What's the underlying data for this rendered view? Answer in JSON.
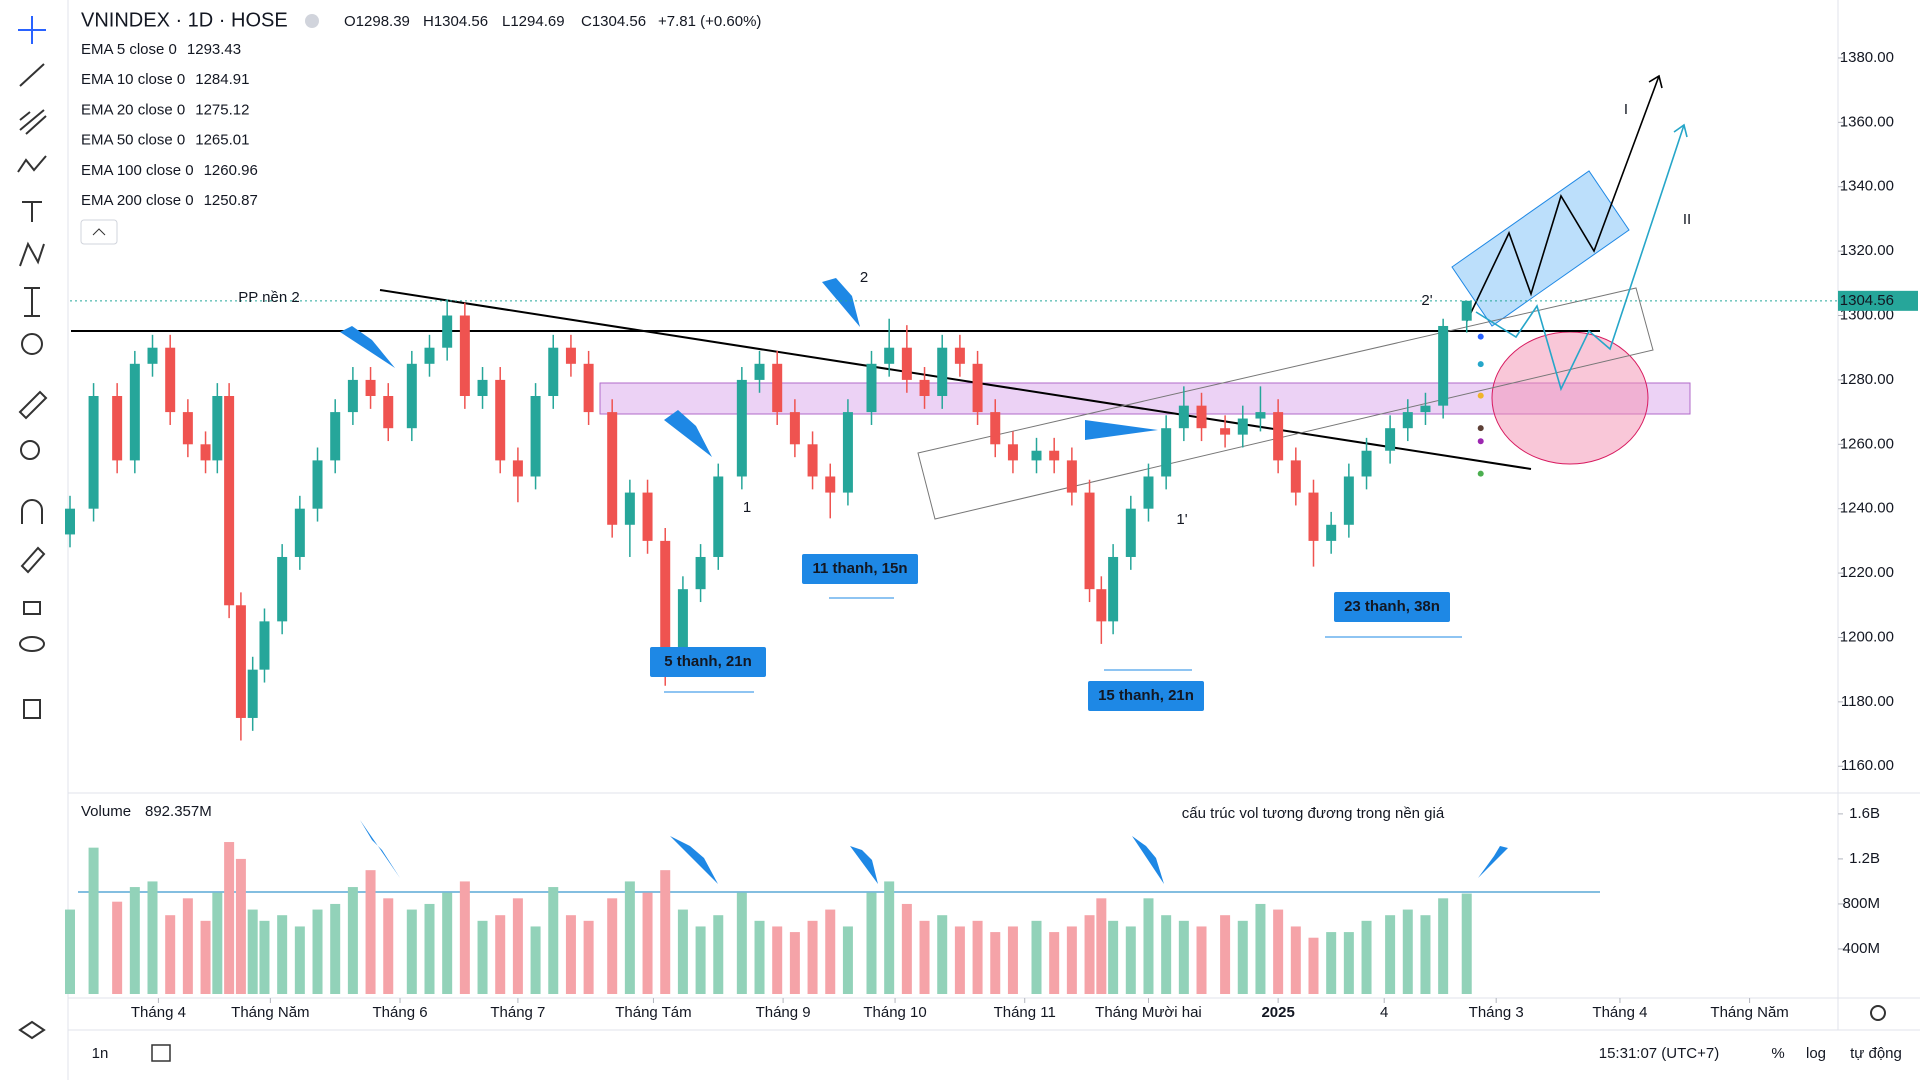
{
  "header": {
    "symbol": "VNINDEX · 1D · HOSE",
    "open": "O1298.39",
    "high": "H1304.56",
    "low": "L1294.69",
    "close": "C1304.56",
    "change": "+7.81 (+0.60%)"
  },
  "chart_data": {
    "type": "candlestick",
    "x": [
      0,
      4,
      8,
      11,
      14,
      17,
      20,
      23,
      25,
      27,
      29,
      31,
      33,
      36,
      39,
      42,
      45,
      48,
      51,
      54,
      58,
      61,
      64,
      67,
      70,
      73,
      76,
      79,
      82,
      85,
      88,
      92,
      95,
      98,
      101,
      104,
      107,
      110,
      114,
      117,
      120,
      123,
      126,
      129,
      132,
      136,
      139,
      142,
      145,
      148,
      151,
      154,
      157,
      160,
      164,
      167,
      170,
      173,
      175,
      177,
      180,
      183,
      186,
      189,
      192,
      196,
      199,
      202,
      205,
      208,
      211,
      214,
      217,
      220,
      224,
      227,
      230,
      233,
      237
    ],
    "open": [
      1232,
      1240,
      1275,
      1255,
      1285,
      1290,
      1270,
      1260,
      1255,
      1275,
      1210,
      1175,
      1190,
      1205,
      1225,
      1240,
      1255,
      1270,
      1280,
      1275,
      1265,
      1285,
      1290,
      1300,
      1275,
      1280,
      1255,
      1250,
      1275,
      1290,
      1285,
      1270,
      1235,
      1245,
      1230,
      1195,
      1215,
      1225,
      1250,
      1280,
      1285,
      1270,
      1260,
      1250,
      1245,
      1270,
      1285,
      1290,
      1280,
      1275,
      1290,
      1285,
      1270,
      1260,
      1255,
      1258,
      1255,
      1245,
      1215,
      1205,
      1225,
      1240,
      1250,
      1265,
      1272,
      1265,
      1263,
      1268,
      1270,
      1255,
      1245,
      1230,
      1235,
      1250,
      1258,
      1265,
      1270,
      1272,
      1298.39
    ],
    "high": [
      1244,
      1279,
      1279,
      1289,
      1294,
      1294,
      1274,
      1264,
      1279,
      1279,
      1214,
      1194,
      1209,
      1229,
      1244,
      1259,
      1274,
      1284,
      1284,
      1279,
      1289,
      1294,
      1305,
      1304,
      1284,
      1284,
      1259,
      1279,
      1294,
      1294,
      1289,
      1274,
      1249,
      1249,
      1234,
      1219,
      1229,
      1254,
      1284,
      1289,
      1289,
      1274,
      1264,
      1254,
      1274,
      1289,
      1299,
      1297,
      1284,
      1294,
      1294,
      1289,
      1274,
      1264,
      1262,
      1262,
      1259,
      1249,
      1219,
      1229,
      1244,
      1254,
      1269,
      1278,
      1276,
      1269,
      1272,
      1278,
      1274,
      1259,
      1249,
      1239,
      1254,
      1262,
      1269,
      1274,
      1276,
      1299,
      1304.56
    ],
    "low": [
      1228,
      1236,
      1251,
      1251,
      1281,
      1266,
      1256,
      1251,
      1251,
      1206,
      1168,
      1171,
      1186,
      1201,
      1221,
      1236,
      1251,
      1266,
      1271,
      1261,
      1261,
      1281,
      1286,
      1271,
      1271,
      1251,
      1242,
      1246,
      1271,
      1281,
      1266,
      1231,
      1225,
      1226,
      1185,
      1191,
      1211,
      1221,
      1246,
      1276,
      1266,
      1256,
      1246,
      1237,
      1241,
      1266,
      1281,
      1276,
      1271,
      1271,
      1281,
      1266,
      1256,
      1251,
      1251,
      1251,
      1241,
      1211,
      1198,
      1201,
      1221,
      1236,
      1246,
      1261,
      1261,
      1259,
      1259,
      1264,
      1251,
      1241,
      1222,
      1226,
      1231,
      1246,
      1254,
      1261,
      1266,
      1268,
      1294.69
    ],
    "close": [
      1240,
      1275,
      1255,
      1285,
      1290,
      1270,
      1260,
      1255,
      1275,
      1210,
      1175,
      1190,
      1205,
      1225,
      1240,
      1255,
      1270,
      1280,
      1275,
      1265,
      1285,
      1290,
      1300,
      1275,
      1280,
      1255,
      1250,
      1275,
      1290,
      1285,
      1270,
      1235,
      1245,
      1230,
      1195,
      1215,
      1225,
      1250,
      1280,
      1285,
      1270,
      1260,
      1250,
      1245,
      1270,
      1285,
      1290,
      1280,
      1275,
      1290,
      1285,
      1270,
      1260,
      1255,
      1258,
      1255,
      1245,
      1215,
      1205,
      1225,
      1240,
      1250,
      1265,
      1272,
      1265,
      1263,
      1268,
      1270,
      1255,
      1245,
      1230,
      1235,
      1250,
      1258,
      1265,
      1270,
      1272,
      1296.75,
      1304.56
    ],
    "up_color": "#26a69a",
    "down_color": "#ef5350",
    "grid": false,
    "xlim": [
      0,
      300
    ],
    "xticks": [
      {
        "value": 15,
        "label": "Tháng 4"
      },
      {
        "value": 34,
        "label": "Tháng Năm"
      },
      {
        "value": 56,
        "label": "Tháng 6"
      },
      {
        "value": 76,
        "label": "Tháng 7"
      },
      {
        "value": 99,
        "label": "Tháng Tám"
      },
      {
        "value": 121,
        "label": "Tháng 9"
      },
      {
        "value": 140,
        "label": "Tháng 10"
      },
      {
        "value": 162,
        "label": "Tháng 11"
      },
      {
        "value": 183,
        "label": "Tháng Mười hai"
      },
      {
        "value": 205,
        "label": "2025"
      },
      {
        "value": 223,
        "label": "4"
      },
      {
        "value": 242,
        "label": "Tháng 3"
      },
      {
        "value": 263,
        "label": "Tháng 4"
      },
      {
        "value": 285,
        "label": "Tháng Năm"
      }
    ],
    "ylim": [
      1152,
      1398
    ],
    "yticks": [
      {
        "value": 1160,
        "label": "1160.00"
      },
      {
        "value": 1180,
        "label": "1180.00"
      },
      {
        "value": 1200,
        "label": "1200.00"
      },
      {
        "value": 1220,
        "label": "1220.00"
      },
      {
        "value": 1240,
        "label": "1240.00"
      },
      {
        "value": 1260,
        "label": "1260.00"
      },
      {
        "value": 1280,
        "label": "1280.00"
      },
      {
        "value": 1300,
        "label": "1300.00"
      },
      {
        "value": 1320,
        "label": "1320.00"
      },
      {
        "value": 1340,
        "label": "1340.00"
      },
      {
        "value": 1360,
        "label": "1360.00"
      },
      {
        "value": 1380,
        "label": "1380.00"
      }
    ],
    "indicators": [
      {
        "name": "EMA 5 close 0",
        "value": 1293.43,
        "color": "#2962ff"
      },
      {
        "name": "EMA 10 close 0",
        "value": 1284.91,
        "color": "#26a6c9"
      },
      {
        "name": "EMA 20 close 0",
        "value": 1275.12,
        "color": "#f0b429"
      },
      {
        "name": "EMA 50 close 0",
        "value": 1265.01,
        "color": "#5d4037"
      },
      {
        "name": "EMA 100 close 0",
        "value": 1260.96,
        "color": "#9c27b0"
      },
      {
        "name": "EMA 200 close 0",
        "value": 1250.87,
        "color": "#4caf50"
      }
    ],
    "volume": {
      "title": "Volume",
      "value_label": "892.357M",
      "values": [
        750000000.0,
        1300000000.0,
        820000000.0,
        950000000.0,
        1000000000.0,
        700000000.0,
        850000000.0,
        650000000.0,
        900000000.0,
        1350000000.0,
        1200000000.0,
        750000000.0,
        650000000.0,
        700000000.0,
        600000000.0,
        750000000.0,
        800000000.0,
        950000000.0,
        1100000000.0,
        850000000.0,
        750000000.0,
        800000000.0,
        900000000.0,
        1000000000.0,
        650000000.0,
        700000000.0,
        850000000.0,
        600000000.0,
        950000000.0,
        700000000.0,
        650000000.0,
        850000000.0,
        1000000000.0,
        900000000.0,
        1100000000.0,
        750000000.0,
        600000000.0,
        700000000.0,
        900000000.0,
        650000000.0,
        600000000.0,
        550000000.0,
        650000000.0,
        750000000.0,
        600000000.0,
        900000000.0,
        1000000000.0,
        800000000.0,
        650000000.0,
        700000000.0,
        600000000.0,
        650000000.0,
        550000000.0,
        600000000.0,
        650000000.0,
        550000000.0,
        600000000.0,
        700000000.0,
        850000000.0,
        650000000.0,
        600000000.0,
        850000000.0,
        700000000.0,
        650000000.0,
        600000000.0,
        700000000.0,
        650000000.0,
        800000000.0,
        750000000.0,
        600000000.0,
        500000000.0,
        550000000.0,
        550000000.0,
        650000000.0,
        700000000.0,
        750000000.0,
        700000000.0,
        850000000.0,
        892357000.0
      ],
      "up_color": "#92d2b9",
      "down_color": "#f5a3a8",
      "ylim": [
        0,
        1750000000.0
      ],
      "yticks": [
        {
          "value": 400000000.0,
          "label": "400M"
        },
        {
          "value": 800000000.0,
          "label": "800M"
        },
        {
          "value": 1200000000.0,
          "label": "1.2B"
        },
        {
          "value": 1600000000.0,
          "label": "1.6B"
        }
      ]
    },
    "annotations": [
      "PP nền 2",
      "2",
      "1",
      "1'",
      "2'",
      "I",
      "II",
      "11 thanh, 15n",
      "5 thanh, 21n",
      "15 thanh, 21n",
      "23 thanh, 38n",
      "cấu trúc vol tương đương trong nền giá"
    ]
  },
  "footer": {
    "interval": "1n",
    "time": "15:31:07 (UTC+7)",
    "percent": "%",
    "log": "log",
    "auto": "tự động"
  }
}
